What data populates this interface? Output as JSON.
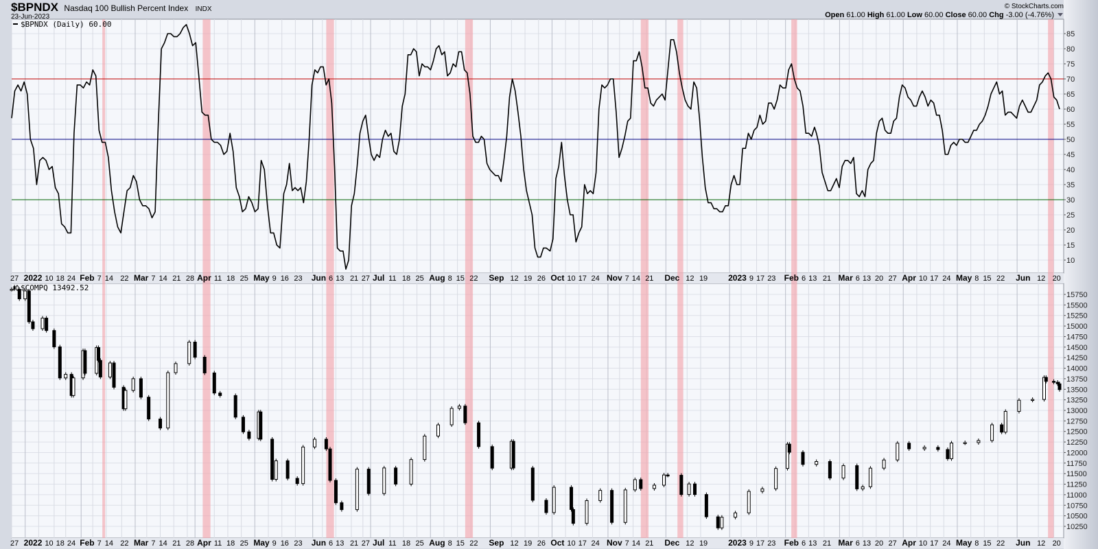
{
  "header": {
    "symbol": "$BPNDX",
    "name": "Nasdaq 100 Bullish Percent Index",
    "exchange": "INDX",
    "date": "23-Jun-2023",
    "copyright": "© StockCharts.com",
    "ohlc": {
      "open_label": "Open",
      "open": "61.00",
      "high_label": "High",
      "high": "61.00",
      "low_label": "Low",
      "low": "60.00",
      "close_label": "Close",
      "close": "60.00",
      "chg_label": "Chg",
      "chg": "-3.00 (-4.76%)"
    },
    "dropdown_icon": "triangle-down-icon"
  },
  "colors": {
    "plot_bg": "#f5f7fb",
    "line": "#000000",
    "overbought_line": "#c00000",
    "mid_line": "#000080",
    "oversold_line": "#006000",
    "highlight_band": "#f4a0a8"
  },
  "chart_data": [
    {
      "type": "line",
      "legend": "$BPNDX (Daily) 60.00",
      "ylim": [
        7,
        91
      ],
      "yticks": [
        10,
        15,
        20,
        25,
        30,
        35,
        40,
        45,
        50,
        55,
        60,
        65,
        70,
        75,
        80,
        85
      ],
      "reference_lines": [
        70,
        50,
        30
      ],
      "x_range": [
        "2021-12-27",
        "2023-06-23"
      ],
      "grid": true,
      "segments": [
        {
          "from": "2021-12-27",
          "to": "2022-05-15",
          "values": [
            57,
            66,
            68,
            66,
            69,
            65,
            50,
            47,
            35,
            43,
            44,
            43,
            40,
            41,
            34,
            32,
            22,
            21,
            19,
            19,
            52,
            68,
            68,
            67,
            69,
            68,
            73,
            71,
            53,
            49,
            49,
            44,
            33,
            26,
            21,
            19,
            26,
            33,
            34,
            38,
            36,
            30,
            28,
            28,
            27,
            24,
            26,
            55,
            80,
            82,
            85,
            85,
            84,
            84,
            85,
            87,
            88,
            85,
            81,
            82,
            71,
            59,
            58,
            58,
            50,
            49,
            49,
            48,
            45,
            46,
            52,
            46,
            34,
            31,
            26,
            27,
            31,
            29,
            26,
            27,
            43,
            40,
            28,
            19,
            19,
            15,
            14
          ]
        },
        {
          "from": "2022-05-17",
          "to": "2022-09-30",
          "values": [
            32,
            35,
            42,
            33,
            34,
            33,
            34,
            29,
            36,
            50,
            68,
            73,
            72,
            74,
            74,
            68,
            70,
            62,
            41,
            14,
            13,
            13,
            7,
            10,
            28,
            32,
            41,
            52,
            56,
            58,
            51,
            45,
            43,
            45,
            44,
            50,
            53,
            51,
            52,
            46,
            45,
            50,
            61,
            65,
            78,
            78,
            80,
            79,
            71,
            75,
            74,
            74,
            73,
            76,
            80,
            81,
            78,
            79,
            71,
            72,
            75,
            74,
            79,
            79,
            73,
            72,
            65,
            51,
            49,
            49,
            51,
            50,
            42,
            40,
            39,
            38,
            38,
            36,
            43,
            51,
            64,
            70,
            66,
            59,
            51,
            40,
            33,
            29,
            25,
            14,
            11,
            11,
            14,
            14
          ]
        },
        {
          "from": "2022-10-02",
          "to": "2023-02-16",
          "values": [
            13,
            17,
            37,
            41,
            49,
            38,
            30,
            25,
            25,
            16,
            19,
            21,
            35,
            32,
            33,
            32,
            39,
            60,
            68,
            67,
            68,
            70,
            70,
            59,
            44,
            47,
            51,
            56,
            57,
            76,
            76,
            79,
            74,
            67,
            67,
            62,
            61,
            63,
            64,
            65,
            63,
            73,
            83,
            83,
            79,
            72,
            67,
            63,
            61,
            60,
            69,
            67,
            57,
            44,
            34,
            29,
            29,
            27,
            27,
            26,
            26,
            28,
            28,
            35,
            38,
            35,
            35,
            47,
            47,
            52,
            50,
            53,
            54,
            58,
            55,
            56,
            62,
            62,
            60,
            63,
            68,
            67,
            67,
            73,
            75,
            70,
            67,
            66,
            61,
            52,
            52,
            51,
            54
          ]
        },
        {
          "from": "2023-02-17",
          "to": "2023-06-23",
          "values": [
            52,
            48,
            39,
            36,
            33,
            33,
            35,
            37,
            34,
            41,
            43,
            43,
            42,
            44,
            32,
            31,
            33,
            31,
            40,
            42,
            43,
            52,
            56,
            57,
            53,
            52,
            52,
            56,
            57,
            64,
            68,
            67,
            64,
            63,
            61,
            61,
            64,
            66,
            64,
            61,
            63,
            62,
            58,
            58,
            53,
            45,
            45,
            48,
            49,
            48,
            50,
            50,
            49,
            49,
            51,
            53,
            53,
            55,
            56,
            58,
            61,
            65,
            67,
            69,
            65,
            66,
            58,
            59,
            59,
            58,
            57,
            61,
            63,
            61,
            59,
            59,
            61,
            63,
            68,
            69,
            71,
            72,
            70,
            64,
            63,
            60
          ]
        }
      ]
    },
    {
      "type": "candlestick",
      "legend": "$COMPQ 13492.52",
      "legend_icon": "candlestick-icon",
      "ylim": [
        10050,
        16000
      ],
      "yticks": [
        10250,
        10500,
        10750,
        11000,
        11250,
        11500,
        11750,
        12000,
        12250,
        12500,
        12750,
        13000,
        13250,
        13500,
        13750,
        14000,
        14250,
        14500,
        14750,
        15000,
        15250,
        15500,
        15750
      ],
      "closes": [
        [
          "2021-12-27",
          15871
        ],
        [
          "2021-12-31",
          15645
        ],
        [
          "2022-01-03",
          15833
        ],
        [
          "2022-01-05",
          15100
        ],
        [
          "2022-01-07",
          14936
        ],
        [
          "2022-01-12",
          15188
        ],
        [
          "2022-01-14",
          14893
        ],
        [
          "2022-01-18",
          14506
        ],
        [
          "2022-01-21",
          13769
        ],
        [
          "2022-01-24",
          13855
        ],
        [
          "2022-01-27",
          13352
        ],
        [
          "2022-01-28",
          13770
        ],
        [
          "2022-02-02",
          14417
        ],
        [
          "2022-02-03",
          13878
        ],
        [
          "2022-02-09",
          14490
        ],
        [
          "2022-02-10",
          14185
        ],
        [
          "2022-02-11",
          13791
        ],
        [
          "2022-02-16",
          14124
        ],
        [
          "2022-02-18",
          13548
        ],
        [
          "2022-02-23",
          13038
        ],
        [
          "2022-02-24",
          13473
        ],
        [
          "2022-02-28",
          13751
        ],
        [
          "2022-03-04",
          13313
        ],
        [
          "2022-03-08",
          12795
        ],
        [
          "2022-03-14",
          12581
        ],
        [
          "2022-03-18",
          13894
        ],
        [
          "2022-03-22",
          14109
        ],
        [
          "2022-03-29",
          14619
        ],
        [
          "2022-04-01",
          14261
        ],
        [
          "2022-04-06",
          13888
        ],
        [
          "2022-04-11",
          13411
        ],
        [
          "2022-04-14",
          13351
        ],
        [
          "2022-04-22",
          12839
        ],
        [
          "2022-04-26",
          12490
        ],
        [
          "2022-04-29",
          12335
        ],
        [
          "2022-05-04",
          12964
        ],
        [
          "2022-05-05",
          12317
        ],
        [
          "2022-05-11",
          11364
        ],
        [
          "2022-05-13",
          11805
        ],
        [
          "2022-05-19",
          11388
        ],
        [
          "2022-05-24",
          11264
        ],
        [
          "2022-05-27",
          12131
        ],
        [
          "2022-06-02",
          12316
        ],
        [
          "2022-06-08",
          12086
        ],
        [
          "2022-06-10",
          11340
        ],
        [
          "2022-06-13",
          10809
        ],
        [
          "2022-06-16",
          10646
        ],
        [
          "2022-06-24",
          11607
        ],
        [
          "2022-06-30",
          11028
        ],
        [
          "2022-07-08",
          11635
        ],
        [
          "2022-07-14",
          11251
        ],
        [
          "2022-07-22",
          11834
        ],
        [
          "2022-07-29",
          12391
        ],
        [
          "2022-08-05",
          12657
        ],
        [
          "2022-08-12",
          13047
        ],
        [
          "2022-08-16",
          13102
        ],
        [
          "2022-08-19",
          12705
        ],
        [
          "2022-08-26",
          12141
        ],
        [
          "2022-09-02",
          11630
        ],
        [
          "2022-09-12",
          12266
        ],
        [
          "2022-09-13",
          11634
        ],
        [
          "2022-09-23",
          10868
        ],
        [
          "2022-09-30",
          10576
        ],
        [
          "2022-10-04",
          11176
        ],
        [
          "2022-10-13",
          10649
        ],
        [
          "2022-10-14",
          10321
        ],
        [
          "2022-10-21",
          10860
        ],
        [
          "2022-10-28",
          11102
        ],
        [
          "2022-11-03",
          10343
        ],
        [
          "2022-11-10",
          11114
        ],
        [
          "2022-11-15",
          11358
        ],
        [
          "2022-11-18",
          11146
        ],
        [
          "2022-11-25",
          11226
        ],
        [
          "2022-11-30",
          11468
        ],
        [
          "2022-12-02",
          11461
        ],
        [
          "2022-12-09",
          11005
        ],
        [
          "2022-12-13",
          11256
        ],
        [
          "2022-12-16",
          11005
        ],
        [
          "2022-12-22",
          10476
        ],
        [
          "2022-12-28",
          10213
        ],
        [
          "2022-12-30",
          10466
        ],
        [
          "2023-01-06",
          10569
        ],
        [
          "2023-01-13",
          11079
        ],
        [
          "2023-01-20",
          11140
        ],
        [
          "2023-01-27",
          11622
        ],
        [
          "2023-02-02",
          12200
        ],
        [
          "2023-02-03",
          12007
        ],
        [
          "2023-02-10",
          11718
        ],
        [
          "2023-02-17",
          11787
        ],
        [
          "2023-02-24",
          11395
        ],
        [
          "2023-03-03",
          11689
        ],
        [
          "2023-03-10",
          11138
        ],
        [
          "2023-03-13",
          11188
        ],
        [
          "2023-03-17",
          11630
        ],
        [
          "2023-03-24",
          11824
        ],
        [
          "2023-03-31",
          12222
        ],
        [
          "2023-04-06",
          12088
        ],
        [
          "2023-04-14",
          12123
        ],
        [
          "2023-04-21",
          12072
        ],
        [
          "2023-04-26",
          11854
        ],
        [
          "2023-04-28",
          12227
        ],
        [
          "2023-05-05",
          12235
        ],
        [
          "2023-05-12",
          12284
        ],
        [
          "2023-05-19",
          12658
        ],
        [
          "2023-05-24",
          12484
        ],
        [
          "2023-05-26",
          12976
        ],
        [
          "2023-06-02",
          13241
        ],
        [
          "2023-06-09",
          13259
        ],
        [
          "2023-06-15",
          13782
        ],
        [
          "2023-06-16",
          13689
        ],
        [
          "2023-06-20",
          13667
        ],
        [
          "2023-06-22",
          13630
        ],
        [
          "2023-06-23",
          13492
        ]
      ]
    }
  ],
  "highlight_bands": [
    [
      "2022-02-12",
      "2022-02-13"
    ],
    [
      "2022-04-05",
      "2022-04-09"
    ],
    [
      "2022-06-08",
      "2022-06-12"
    ],
    [
      "2022-08-19",
      "2022-08-23"
    ],
    [
      "2022-11-18",
      "2022-11-22"
    ],
    [
      "2022-12-07",
      "2022-12-10"
    ],
    [
      "2023-02-04",
      "2023-02-07"
    ],
    [
      "2023-06-17",
      "2023-06-20"
    ]
  ],
  "x_ticks": [
    [
      "27",
      "2021-12-27",
      false
    ],
    [
      "2022",
      "2022-01-03",
      true
    ],
    [
      "10",
      "2022-01-10",
      false
    ],
    [
      "18",
      "2022-01-18",
      false
    ],
    [
      "24",
      "2022-01-24",
      false
    ],
    [
      "Feb",
      "2022-02-01",
      true
    ],
    [
      "7",
      "2022-02-07",
      false
    ],
    [
      "14",
      "2022-02-14",
      false
    ],
    [
      "22",
      "2022-02-22",
      false
    ],
    [
      "Mar",
      "2022-03-01",
      true
    ],
    [
      "7",
      "2022-03-07",
      false
    ],
    [
      "14",
      "2022-03-14",
      false
    ],
    [
      "21",
      "2022-03-21",
      false
    ],
    [
      "28",
      "2022-03-28",
      false
    ],
    [
      "Apr",
      "2022-04-01",
      true
    ],
    [
      "11",
      "2022-04-11",
      false
    ],
    [
      "18",
      "2022-04-18",
      false
    ],
    [
      "25",
      "2022-04-25",
      false
    ],
    [
      "May",
      "2022-05-02",
      true
    ],
    [
      "9",
      "2022-05-09",
      false
    ],
    [
      "16",
      "2022-05-16",
      false
    ],
    [
      "23",
      "2022-05-23",
      false
    ],
    [
      "Jun",
      "2022-06-01",
      true
    ],
    [
      "6",
      "2022-06-06",
      false
    ],
    [
      "13",
      "2022-06-13",
      false
    ],
    [
      "21",
      "2022-06-21",
      false
    ],
    [
      "27",
      "2022-06-27",
      false
    ],
    [
      "Jul",
      "2022-07-01",
      true
    ],
    [
      "11",
      "2022-07-11",
      false
    ],
    [
      "18",
      "2022-07-18",
      false
    ],
    [
      "25",
      "2022-07-25",
      false
    ],
    [
      "Aug",
      "2022-08-01",
      true
    ],
    [
      "8",
      "2022-08-08",
      false
    ],
    [
      "15",
      "2022-08-15",
      false
    ],
    [
      "22",
      "2022-08-22",
      false
    ],
    [
      "Sep",
      "2022-09-01",
      true
    ],
    [
      "12",
      "2022-09-12",
      false
    ],
    [
      "19",
      "2022-09-19",
      false
    ],
    [
      "26",
      "2022-09-26",
      false
    ],
    [
      "Oct",
      "2022-10-03",
      true
    ],
    [
      "10",
      "2022-10-10",
      false
    ],
    [
      "17",
      "2022-10-17",
      false
    ],
    [
      "24",
      "2022-10-24",
      false
    ],
    [
      "Nov",
      "2022-11-01",
      true
    ],
    [
      "7",
      "2022-11-07",
      false
    ],
    [
      "14",
      "2022-11-14",
      false
    ],
    [
      "21",
      "2022-11-21",
      false
    ],
    [
      "Dec",
      "2022-12-01",
      true
    ],
    [
      "12",
      "2022-12-12",
      false
    ],
    [
      "19",
      "2022-12-19",
      false
    ],
    [
      "2023",
      "2023-01-03",
      true
    ],
    [
      "9",
      "2023-01-09",
      false
    ],
    [
      "17",
      "2023-01-17",
      false
    ],
    [
      "23",
      "2023-01-23",
      false
    ],
    [
      "Feb",
      "2023-02-01",
      true
    ],
    [
      "6",
      "2023-02-06",
      false
    ],
    [
      "13",
      "2023-02-13",
      false
    ],
    [
      "21",
      "2023-02-21",
      false
    ],
    [
      "Mar",
      "2023-03-01",
      true
    ],
    [
      "6",
      "2023-03-06",
      false
    ],
    [
      "13",
      "2023-03-13",
      false
    ],
    [
      "20",
      "2023-03-20",
      false
    ],
    [
      "27",
      "2023-03-27",
      false
    ],
    [
      "Apr",
      "2023-04-03",
      true
    ],
    [
      "10",
      "2023-04-10",
      false
    ],
    [
      "17",
      "2023-04-17",
      false
    ],
    [
      "24",
      "2023-04-24",
      false
    ],
    [
      "May",
      "2023-05-01",
      true
    ],
    [
      "8",
      "2023-05-08",
      false
    ],
    [
      "15",
      "2023-05-15",
      false
    ],
    [
      "22",
      "2023-05-22",
      false
    ],
    [
      "Jun",
      "2023-06-01",
      true
    ],
    [
      "12",
      "2023-06-12",
      false
    ],
    [
      "20",
      "2023-06-20",
      false
    ]
  ]
}
